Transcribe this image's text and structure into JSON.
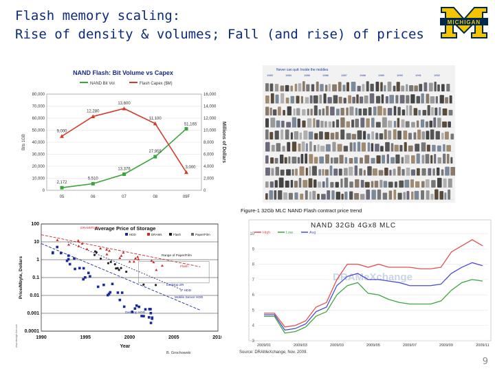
{
  "slide": {
    "title_line1": "Flash memory scaling:",
    "title_line2": "Rise of density & volumes; Fall (and rise) of prices",
    "logo_text": "MICHIGAN",
    "page_number": "9"
  },
  "colors": {
    "title": "#0a2a7a",
    "green": "#3aa63a",
    "red": "#d23a2a",
    "blue": "#2a3aa8",
    "maize": "#f2c500",
    "navy": "#00274c"
  },
  "mosaic": {
    "header_text": "Never can quit: Inside the mobiles",
    "year_labels": [
      "1983",
      "1984",
      "1985",
      "1986",
      "1987",
      "1988",
      "1989",
      "1990",
      "1991",
      "1992"
    ]
  },
  "chart_data": [
    {
      "type": "line",
      "title": "NAND Flash: Bit Volume vs Capex",
      "categories": [
        "05",
        "06",
        "07",
        "08",
        "09F"
      ],
      "ylabel": "Bits 1GB",
      "y2label": "Millions of Dollars",
      "ylim": [
        0,
        80000
      ],
      "y2lim": [
        0,
        16000
      ],
      "yticks": [
        "80,000",
        "70,000",
        "60,000",
        "50,000",
        "40,000",
        "30,000",
        "20,000",
        "10,000",
        "0"
      ],
      "y2ticks": [
        "16,000",
        "14,000",
        "12,000",
        "10,000",
        "8,000",
        "6,000",
        "4,000",
        "2,000",
        "0"
      ],
      "legend": "top",
      "series": [
        {
          "name": "NAND Bit Vol",
          "axis": "left",
          "values": [
            2172,
            5510,
            13376,
            27955,
            51165
          ],
          "labels": [
            "2,172",
            "5,510",
            "13,376",
            "27,955",
            "51,165"
          ]
        },
        {
          "name": "Flash Capex ($M)",
          "axis": "right",
          "values": [
            9000,
            12280,
            13600,
            11100,
            3000
          ],
          "labels": [
            "9,000",
            "12,280",
            "13,600",
            "11,100",
            "3,000"
          ]
        }
      ]
    },
    {
      "type": "scatter",
      "title": "Average Price of Storage",
      "ylabel": "Price/Mbyte, Dollars",
      "xlabel": "Year",
      "xlim": [
        1990,
        2010
      ],
      "ylim_log": [
        0.0001,
        100
      ],
      "xticks": [
        "1990",
        "1995",
        "2000",
        "2005",
        "2010"
      ],
      "yticks": [
        "100",
        "10",
        "1",
        "0.1",
        "0.01",
        "0.001",
        "0.0001"
      ],
      "annotations": [
        "DRAM/Flash",
        "Range of Paper/Film",
        "Flash",
        "Mobile Server HDD",
        "Desktop HDD",
        "Desktop ZR",
        "1\" HDD"
      ],
      "legend_entries": [
        "HDD",
        "DRAMs",
        "Flash",
        "Paper/Film"
      ],
      "credit": "B. Grochowski",
      "side_credit": "www.storage.ibm.com"
    },
    {
      "type": "line",
      "caption": "Figure-1 32Gb MLC NAND Flash contract price trend",
      "title": "NAND 32Gb 4Gx8 MLC",
      "watermark": "DRAMeXchange",
      "source": "Source: DRAMeXchange, Nov. 2009.",
      "xticks": [
        "2009/01",
        "2009/03",
        "2009/03",
        "2009/05",
        "2009/07",
        "2009/09",
        "2009/11"
      ],
      "ylim": [
        3,
        10
      ],
      "yticks": [
        "10",
        "9",
        "8",
        "7",
        "6",
        "5",
        "4",
        "3"
      ],
      "legend": "top-left",
      "x": [
        0,
        1,
        2,
        3,
        4,
        5,
        6,
        7,
        8,
        9,
        10,
        11,
        12,
        13,
        14,
        15,
        16,
        17,
        18,
        19,
        20,
        21
      ],
      "series": [
        {
          "name": "High",
          "values": [
            4.8,
            4.8,
            3.9,
            4.0,
            4.3,
            5.2,
            5.5,
            7.0,
            8.0,
            8.0,
            7.8,
            8.0,
            7.8,
            7.8,
            7.8,
            7.7,
            7.7,
            7.8,
            8.8,
            9.2,
            9.6,
            9.2
          ]
        },
        {
          "name": "Low",
          "values": [
            4.6,
            4.6,
            3.5,
            3.6,
            3.9,
            4.6,
            4.9,
            6.0,
            6.6,
            6.8,
            6.1,
            6.0,
            5.7,
            5.5,
            5.4,
            5.4,
            5.4,
            5.6,
            6.3,
            6.8,
            7.0,
            6.9
          ]
        },
        {
          "name": "Avg",
          "values": [
            4.7,
            4.7,
            3.7,
            3.8,
            4.1,
            4.9,
            5.2,
            6.6,
            7.2,
            7.4,
            7.0,
            7.0,
            6.9,
            6.8,
            6.6,
            6.6,
            6.6,
            6.7,
            7.4,
            7.8,
            8.1,
            7.9
          ]
        }
      ]
    }
  ]
}
